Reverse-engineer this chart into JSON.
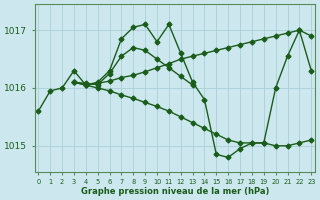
{
  "lines": [
    {
      "x": [
        0,
        1,
        2,
        3,
        4,
        5,
        6,
        7,
        8,
        9,
        10,
        11,
        12,
        13,
        14,
        15,
        16,
        17,
        18,
        19,
        20,
        21,
        22,
        23
      ],
      "y": [
        1015.6,
        1015.95,
        1016.0,
        1016.3,
        1016.05,
        1016.1,
        1016.3,
        1016.85,
        1017.05,
        1017.1,
        1016.8,
        1017.1,
        1016.6,
        1016.1,
        1015.8,
        1014.85,
        1014.8,
        1014.95,
        1015.05,
        1015.05,
        1016.0,
        1016.55,
        1017.0,
        1016.3
      ]
    },
    {
      "x": [
        3,
        4,
        5,
        6,
        7,
        8,
        9,
        10,
        11,
        12,
        13,
        14,
        15,
        16,
        17,
        18,
        19,
        20,
        21,
        22,
        23
      ],
      "y": [
        1016.1,
        1016.05,
        1016.08,
        1016.12,
        1016.18,
        1016.22,
        1016.28,
        1016.35,
        1016.42,
        1016.5,
        1016.55,
        1016.6,
        1016.65,
        1016.7,
        1016.75,
        1016.8,
        1016.85,
        1016.9,
        1016.95,
        1017.0,
        1016.9
      ]
    },
    {
      "x": [
        3,
        4,
        5,
        6,
        7,
        8,
        9,
        10,
        11,
        12,
        13,
        14,
        15,
        16,
        17,
        18,
        19,
        20,
        21,
        22,
        23
      ],
      "y": [
        1016.1,
        1016.05,
        1016.0,
        1015.95,
        1015.88,
        1015.82,
        1015.75,
        1015.68,
        1015.6,
        1015.5,
        1015.4,
        1015.3,
        1015.2,
        1015.1,
        1015.05,
        1015.05,
        1015.05,
        1015.0,
        1015.0,
        1015.05,
        1015.1
      ]
    },
    {
      "x": [
        3,
        4,
        5,
        6,
        7,
        8,
        9,
        10,
        11,
        12,
        13
      ],
      "y": [
        1016.1,
        1016.08,
        1016.06,
        1016.25,
        1016.55,
        1016.7,
        1016.65,
        1016.5,
        1016.35,
        1016.2,
        1016.05
      ]
    }
  ],
  "line_color": "#1a5c1a",
  "marker": "D",
  "marker_size": 2.5,
  "linewidth": 1.0,
  "bg_color": "#cce8ee",
  "grid_color": "#aacfd8",
  "xlabel": "Graphe pression niveau de la mer (hPa)",
  "xlabel_color": "#1a5c1a",
  "tick_color": "#1a5c1a",
  "axis_color": "#5a8a5a",
  "ylim": [
    1014.55,
    1017.45
  ],
  "yticks": [
    1015,
    1016,
    1017
  ],
  "xlim": [
    -0.3,
    23.3
  ],
  "xticks": [
    0,
    1,
    2,
    3,
    4,
    5,
    6,
    7,
    8,
    9,
    10,
    11,
    12,
    13,
    14,
    15,
    16,
    17,
    18,
    19,
    20,
    21,
    22,
    23
  ],
  "xtick_labels": [
    "0",
    "1",
    "2",
    "3",
    "4",
    "5",
    "6",
    "7",
    "8",
    "9",
    "10",
    "11",
    "12",
    "13",
    "14",
    "15",
    "16",
    "17",
    "18",
    "19",
    "20",
    "21",
    "22",
    "23"
  ]
}
